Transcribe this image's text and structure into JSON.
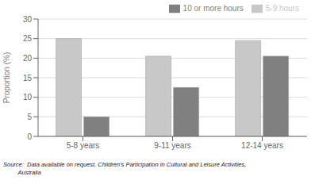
{
  "chart_data": {
    "type": "bar",
    "categories": [
      "5-8 years",
      "9-11 years",
      "12-14 years"
    ],
    "series": [
      {
        "name": "5-9 hours",
        "color": "#c8c8c8",
        "values": [
          25.0,
          20.5,
          24.5
        ]
      },
      {
        "name": "10 or more hours",
        "color": "#808080",
        "values": [
          5.0,
          12.5,
          20.5
        ]
      }
    ],
    "ylabel": "Proportion (%)",
    "ylim": [
      0,
      30
    ],
    "yticks": [
      0,
      5,
      10,
      15,
      20,
      25,
      30
    ],
    "grid": true,
    "legend": "upper right",
    "annotations": [
      "Source:  Data available on request, Children's Participation in Cultural and Leisure Activities,",
      "         Australia"
    ]
  }
}
